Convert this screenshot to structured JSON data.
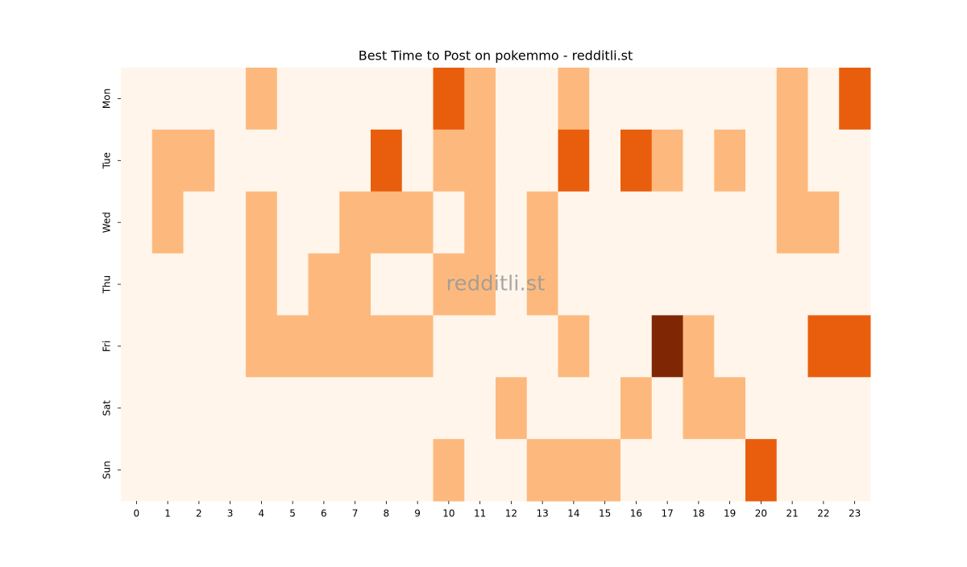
{
  "chart_data": {
    "type": "heatmap",
    "title": "Best Time to Post on pokemmo - redditli.st",
    "watermark": "redditli.st",
    "x_categories": [
      "0",
      "1",
      "2",
      "3",
      "4",
      "5",
      "6",
      "7",
      "8",
      "9",
      "10",
      "11",
      "12",
      "13",
      "14",
      "15",
      "16",
      "17",
      "18",
      "19",
      "20",
      "21",
      "22",
      "23"
    ],
    "y_categories": [
      "Mon",
      "Tue",
      "Wed",
      "Thu",
      "Fri",
      "Sat",
      "Sun"
    ],
    "values": [
      [
        0,
        0,
        0,
        0,
        1,
        0,
        0,
        0,
        0,
        0,
        2,
        1,
        0,
        0,
        1,
        0,
        0,
        0,
        0,
        0,
        0,
        1,
        0,
        2
      ],
      [
        0,
        1,
        1,
        0,
        0,
        0,
        0,
        0,
        2,
        0,
        1,
        1,
        0,
        0,
        2,
        0,
        2,
        1,
        0,
        1,
        0,
        1,
        0,
        0
      ],
      [
        0,
        1,
        0,
        0,
        1,
        0,
        0,
        1,
        1,
        1,
        0,
        1,
        0,
        1,
        0,
        0,
        0,
        0,
        0,
        0,
        0,
        1,
        1,
        0
      ],
      [
        0,
        0,
        0,
        0,
        1,
        0,
        1,
        1,
        0,
        0,
        1,
        1,
        0,
        1,
        0,
        0,
        0,
        0,
        0,
        0,
        0,
        0,
        0,
        0
      ],
      [
        0,
        0,
        0,
        0,
        1,
        1,
        1,
        1,
        1,
        1,
        0,
        0,
        0,
        0,
        1,
        0,
        0,
        3,
        1,
        0,
        0,
        0,
        2,
        2
      ],
      [
        0,
        0,
        0,
        0,
        0,
        0,
        0,
        0,
        0,
        0,
        0,
        0,
        1,
        0,
        0,
        0,
        1,
        0,
        1,
        1,
        0,
        0,
        0,
        0
      ],
      [
        0,
        0,
        0,
        0,
        0,
        0,
        0,
        0,
        0,
        0,
        1,
        0,
        0,
        1,
        1,
        1,
        0,
        0,
        0,
        0,
        2,
        0,
        0,
        0
      ]
    ],
    "color_scale": [
      "#fff5eb",
      "#fdb97d",
      "#e95e0d",
      "#7f2704"
    ]
  }
}
